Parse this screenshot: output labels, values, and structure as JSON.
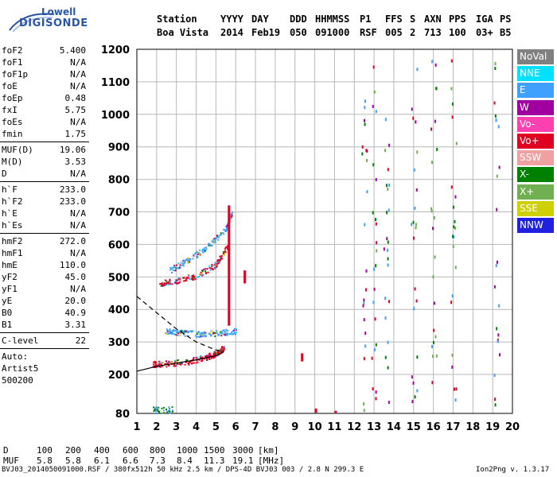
{
  "logo": {
    "line1": "Lowell",
    "line2": "DIGISONDE"
  },
  "header": {
    "labels": [
      "Station",
      "YYYY",
      "DAY",
      "DDD",
      "HHMMSS",
      "P1",
      "FFS",
      "S",
      "AXN",
      "PPS",
      "IGA",
      "PS"
    ],
    "values": [
      "Boa Vista",
      "2014",
      "Feb19",
      "050",
      "091000",
      "RSF",
      "005",
      "2",
      "713",
      "100",
      "03+",
      "B5"
    ]
  },
  "params": {
    "group1": [
      {
        "k": "foF2",
        "v": "5.400"
      },
      {
        "k": "foF1",
        "v": "N/A"
      },
      {
        "k": "foF1p",
        "v": "N/A"
      },
      {
        "k": "foE",
        "v": "N/A"
      },
      {
        "k": "foEp",
        "v": "0.48"
      },
      {
        "k": "fxI",
        "v": "5.75"
      },
      {
        "k": "foEs",
        "v": "N/A"
      },
      {
        "k": "fmin",
        "v": "1.75"
      }
    ],
    "group2": [
      {
        "k": "MUF(D)",
        "v": "19.06"
      },
      {
        "k": "M(D)",
        "v": "3.53"
      },
      {
        "k": "D",
        "v": "N/A"
      }
    ],
    "group3": [
      {
        "k": "h`F",
        "v": "233.0"
      },
      {
        "k": "h`F2",
        "v": "233.0"
      },
      {
        "k": "h`E",
        "v": "N/A"
      },
      {
        "k": "h`Es",
        "v": "N/A"
      }
    ],
    "group4": [
      {
        "k": "hmF2",
        "v": "272.0"
      },
      {
        "k": "hmF1",
        "v": "N/A"
      },
      {
        "k": "hmE",
        "v": "110.0"
      },
      {
        "k": "yF2",
        "v": "45.0"
      },
      {
        "k": "yF1",
        "v": "N/A"
      },
      {
        "k": "yE",
        "v": "20.0"
      },
      {
        "k": "B0",
        "v": "40.9"
      },
      {
        "k": "B1",
        "v": "3.31"
      }
    ],
    "group5": [
      {
        "k": "C-level",
        "v": "22"
      }
    ]
  },
  "auto": {
    "line1": "Auto:",
    "line2": "Artist5",
    "line3": "500200"
  },
  "legend": [
    {
      "label": "NoVal",
      "color": "#808080"
    },
    {
      "label": "NNE",
      "color": "#00e0ff"
    },
    {
      "label": "E",
      "color": "#40a0ff"
    },
    {
      "label": "W",
      "color": "#a000a0"
    },
    {
      "label": "Vo-",
      "color": "#ff40b0"
    },
    {
      "label": "Vo+",
      "color": "#e00020"
    },
    {
      "label": "SSW",
      "color": "#f0a0a0"
    },
    {
      "label": "X-",
      "color": "#008000"
    },
    {
      "label": "X+",
      "color": "#70b050"
    },
    {
      "label": "SSE",
      "color": "#d0d000"
    },
    {
      "label": "NNW",
      "color": "#2020e0"
    }
  ],
  "muf_table": {
    "d_label": "D",
    "d_values": [
      "100",
      "200",
      "400",
      "600",
      "800",
      "1000",
      "1500",
      "3000"
    ],
    "d_unit": "[km]",
    "muf_label": "MUF",
    "muf_values": [
      "5.8",
      "5.8",
      "6.1",
      "6.6",
      "7.3",
      "8.4",
      "11.3",
      "19.1"
    ],
    "muf_unit": "[MHz]"
  },
  "footer": {
    "left": "BVJ03_2014050091000.RSF / 380fx512h 50 kHz 2.5 km / DPS-4D BVJ03 003 / 2.8 N 299.3 E",
    "right": "Ion2Png v. 1.3.17"
  },
  "chart_data": {
    "type": "scatter",
    "xlim": [
      1,
      20
    ],
    "ylim": [
      80,
      1200
    ],
    "xticks": [
      1,
      2,
      3,
      4,
      5,
      6,
      7,
      8,
      9,
      10,
      11,
      12,
      13,
      14,
      15,
      16,
      17,
      18,
      19,
      20
    ],
    "yticks": [
      80,
      200,
      300,
      400,
      500,
      600,
      700,
      800,
      900,
      1000,
      1100,
      1200
    ],
    "grid": true,
    "traces": [
      {
        "name": "F2 O-trace",
        "color": "#e00020",
        "points": [
          [
            1.75,
            233
          ],
          [
            2.5,
            235
          ],
          [
            3.5,
            240
          ],
          [
            4.5,
            255
          ],
          [
            5.0,
            265
          ],
          [
            5.4,
            285
          ]
        ]
      },
      {
        "name": "F2 X-trace",
        "color": "#40a0ff",
        "points": [
          [
            2.4,
            335
          ],
          [
            3.2,
            330
          ],
          [
            4.2,
            325
          ],
          [
            5.2,
            330
          ],
          [
            6.0,
            335
          ]
        ]
      },
      {
        "name": "Multi-hop",
        "color": "#e00020",
        "points": [
          [
            2.1,
            480
          ],
          [
            3.0,
            490
          ],
          [
            4.0,
            505
          ],
          [
            5.0,
            540
          ],
          [
            5.6,
            600
          ]
        ]
      },
      {
        "name": "Multi-hop X",
        "color": "#40a0ff",
        "points": [
          [
            2.6,
            520
          ],
          [
            3.5,
            550
          ],
          [
            4.5,
            590
          ],
          [
            5.5,
            650
          ],
          [
            5.8,
            700
          ]
        ]
      }
    ],
    "profile_solid": [
      [
        1,
        210
      ],
      [
        2,
        225
      ],
      [
        3,
        235
      ],
      [
        4,
        245
      ],
      [
        5,
        258
      ],
      [
        5.4,
        270
      ]
    ],
    "profile_dashed": [
      [
        1,
        440
      ],
      [
        2,
        390
      ],
      [
        3,
        340
      ],
      [
        4,
        300
      ],
      [
        5,
        275
      ],
      [
        5.4,
        272
      ]
    ]
  }
}
